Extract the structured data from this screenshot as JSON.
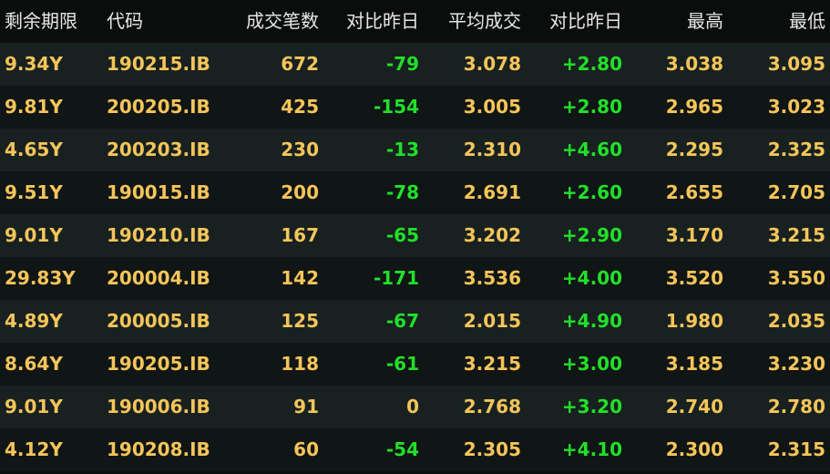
{
  "colors": {
    "value": "#f5c55a",
    "change": "#22e02a",
    "header": "#e6e6e6",
    "row_light": "#182120",
    "row_dark": "#101515"
  },
  "headers": [
    "剩余期限",
    "代码",
    "成交笔数",
    "对比昨日",
    "平均成交",
    "对比昨日",
    "最高",
    "最低"
  ],
  "rows": [
    [
      "9.34Y",
      "190215.IB",
      "672",
      "-79",
      "3.078",
      "+2.80",
      "3.038",
      "3.095"
    ],
    [
      "9.81Y",
      "200205.IB",
      "425",
      "-154",
      "3.005",
      "+2.80",
      "2.965",
      "3.023"
    ],
    [
      "4.65Y",
      "200203.IB",
      "230",
      "-13",
      "2.310",
      "+4.60",
      "2.295",
      "2.325"
    ],
    [
      "9.51Y",
      "190015.IB",
      "200",
      "-78",
      "2.691",
      "+2.60",
      "2.655",
      "2.705"
    ],
    [
      "9.01Y",
      "190210.IB",
      "167",
      "-65",
      "3.202",
      "+2.90",
      "3.170",
      "3.215"
    ],
    [
      "29.83Y",
      "200004.IB",
      "142",
      "-171",
      "3.536",
      "+4.00",
      "3.520",
      "3.550"
    ],
    [
      "4.89Y",
      "200005.IB",
      "125",
      "-67",
      "2.015",
      "+4.90",
      "1.980",
      "2.035"
    ],
    [
      "8.64Y",
      "190205.IB",
      "118",
      "-61",
      "3.215",
      "+3.00",
      "3.185",
      "3.230"
    ],
    [
      "9.01Y",
      "190006.IB",
      "91",
      "0",
      "2.768",
      "+3.20",
      "2.740",
      "2.780"
    ],
    [
      "4.12Y",
      "190208.IB",
      "60",
      "-54",
      "2.305",
      "+4.10",
      "2.300",
      "2.315"
    ]
  ]
}
